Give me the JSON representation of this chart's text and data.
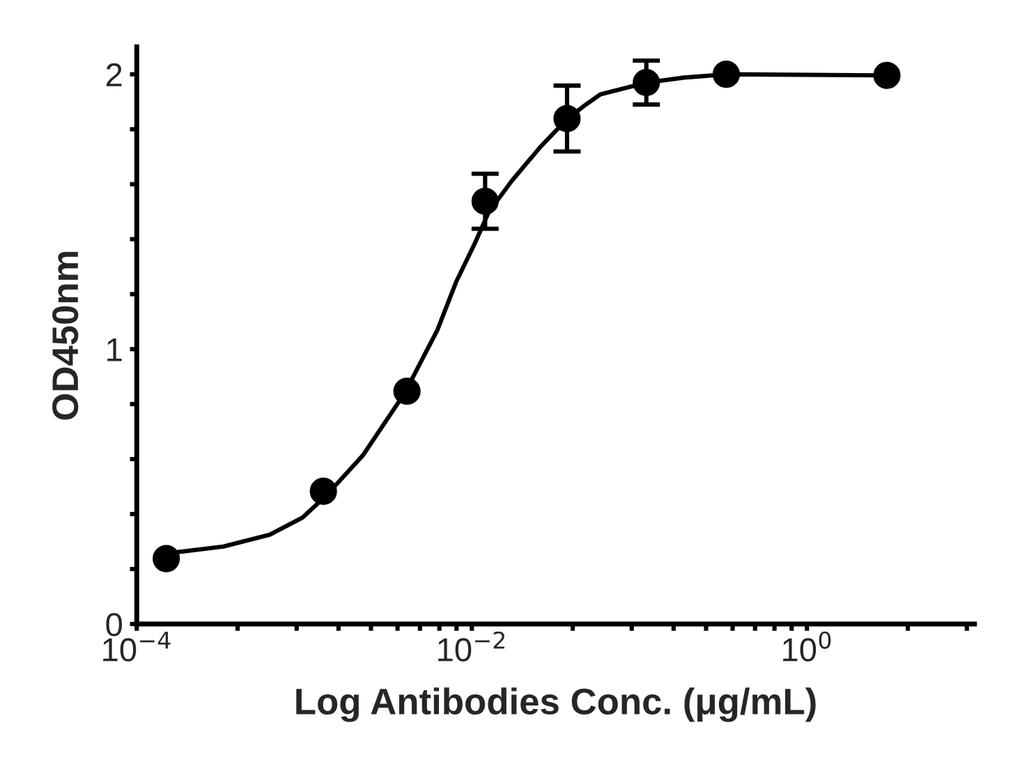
{
  "chart_data": {
    "type": "scatter",
    "xlabel": "Log Antibodies Conc. (μg/mL)",
    "ylabel": "OD450nm",
    "log": "x",
    "marker": "circle",
    "grid": false,
    "legend": false,
    "xlim": [
      0.0001,
      10
    ],
    "ylim": [
      0,
      2.1
    ],
    "xticks": [
      {
        "value": 0.0001,
        "label": "10$^{−4}$"
      },
      {
        "value": 0.0004,
        "label": null
      },
      {
        "value": 0.0009,
        "label": null
      },
      {
        "value": 0.0016,
        "label": null
      },
      {
        "value": 0.0025,
        "label": null
      },
      {
        "value": 0.0036,
        "label": null
      },
      {
        "value": 0.0049,
        "label": null
      },
      {
        "value": 0.0064,
        "label": null
      },
      {
        "value": 0.0081,
        "label": null
      },
      {
        "value": 0.01,
        "label": "10$^{−2}$"
      },
      {
        "value": 0.04,
        "label": null
      },
      {
        "value": 0.09,
        "label": null
      },
      {
        "value": 0.16,
        "label": null
      },
      {
        "value": 0.25,
        "label": null
      },
      {
        "value": 0.36,
        "label": null
      },
      {
        "value": 0.49,
        "label": null
      },
      {
        "value": 0.64,
        "label": null
      },
      {
        "value": 0.81,
        "label": null
      },
      {
        "value": 1,
        "label": "10$^{0}$"
      },
      {
        "value": 4,
        "label": null
      },
      {
        "value": 9,
        "label": null
      }
    ],
    "yticks": [
      0,
      {
        "value": 0.2,
        "label": null
      },
      {
        "value": 0.4,
        "label": null
      },
      {
        "value": 0.6,
        "label": null
      },
      {
        "value": 0.8,
        "label": null
      },
      1,
      {
        "value": 1.2,
        "label": null
      },
      {
        "value": 1.4,
        "label": null
      },
      {
        "value": 1.6,
        "label": null
      },
      {
        "value": 1.8,
        "label": null
      },
      2
    ],
    "series": [
      {
        "type": "line",
        "color": "#000000",
        "marker": "none",
        "line_style": "solid",
        "x": [
          0.000148,
          0.000329,
          0.000622,
          0.000975,
          0.00134,
          0.00224,
          0.00398,
          0.00622,
          0.00805,
          0.0104,
          0.0126,
          0.0173,
          0.0255,
          0.0373,
          0.0482,
          0.0585,
          0.111,
          0.185,
          0.329,
          2.87
        ],
        "values": [
          0.256,
          0.282,
          0.325,
          0.387,
          0.465,
          0.614,
          0.841,
          1.069,
          1.244,
          1.384,
          1.498,
          1.612,
          1.734,
          1.839,
          1.891,
          1.927,
          1.97,
          1.988,
          2.0,
          1.996
        ]
      },
      {
        "color": "#000000",
        "x": [
          0.00015,
          0.0013,
          0.0041,
          0.012,
          0.037,
          0.11,
          0.33,
          3
        ],
        "values": [
          0.238,
          0.483,
          0.847,
          1.538,
          1.839,
          1.97,
          2.0,
          1.996
        ],
        "errors": [
          null,
          null,
          null,
          0.1,
          0.12,
          0.08,
          null,
          null
        ]
      }
    ]
  }
}
